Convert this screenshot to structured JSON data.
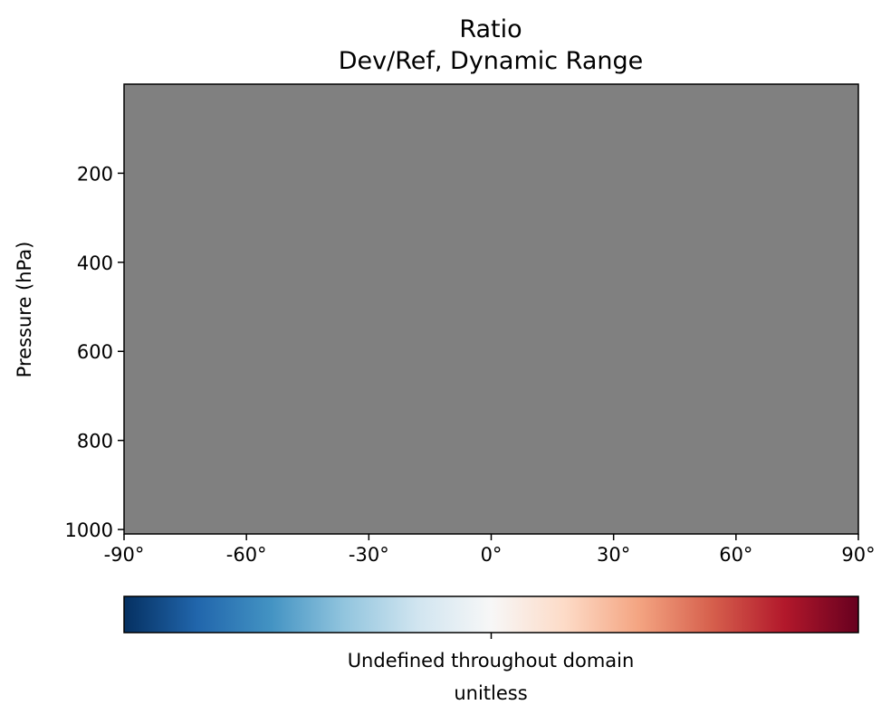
{
  "chart_data": {
    "type": "heatmap",
    "title": "Ratio",
    "subtitle": "Dev/Ref, Dynamic Range",
    "xlabel": "",
    "ylabel": "Pressure (hPa)",
    "xlim": [
      -90,
      90
    ],
    "ylim": [
      1010,
      0
    ],
    "x_ticks": [
      {
        "value": -90,
        "label": "-90°"
      },
      {
        "value": -60,
        "label": "-60°"
      },
      {
        "value": -30,
        "label": "-30°"
      },
      {
        "value": 0,
        "label": "0°"
      },
      {
        "value": 30,
        "label": "30°"
      },
      {
        "value": 60,
        "label": "60°"
      },
      {
        "value": 90,
        "label": "90°"
      }
    ],
    "y_ticks": [
      {
        "value": 200,
        "label": "200"
      },
      {
        "value": 400,
        "label": "400"
      },
      {
        "value": 600,
        "label": "600"
      },
      {
        "value": 800,
        "label": "800"
      },
      {
        "value": 1000,
        "label": "1000"
      }
    ],
    "field_fill": "#808080",
    "values": "undefined",
    "colorbar": {
      "colormap": "RdBu_r",
      "stops": [
        "#053061",
        "#2166ac",
        "#4393c3",
        "#92c5de",
        "#d1e5f0",
        "#f7f7f7",
        "#fddbc7",
        "#f4a582",
        "#d6604d",
        "#b2182b",
        "#67001f"
      ],
      "tick_value": 0.5,
      "label_line1": "Undefined throughout domain",
      "label_line2": "unitless"
    }
  }
}
